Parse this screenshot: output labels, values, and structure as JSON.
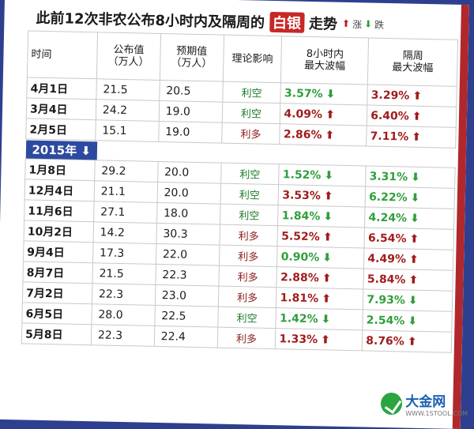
{
  "title": {
    "prefix": "此前12次非农公布8小时内及隔周的",
    "highlight": "白银",
    "suffix": "走势",
    "legend_up": "涨",
    "legend_down": "跌"
  },
  "headers": {
    "date": "时间",
    "actual_l1": "公布值",
    "actual_l2": "（万人）",
    "expected_l1": "预期值",
    "expected_l2": "（万人）",
    "impact": "理论影响",
    "h8_l1": "8小时内",
    "h8_l2": "最大波幅",
    "week_l1": "隔周",
    "week_l2": "最大波幅"
  },
  "year_label": "2015年",
  "rows_2015": [
    {
      "date": "4月1日",
      "actual": "21.5",
      "expected": "20.5",
      "impact": "利空",
      "h8": "3.57%",
      "h8_dir": "down",
      "week": "3.29%",
      "week_dir": "up"
    },
    {
      "date": "3月4日",
      "actual": "24.2",
      "expected": "19.0",
      "impact": "利空",
      "h8": "4.09%",
      "h8_dir": "up",
      "week": "6.40%",
      "week_dir": "up"
    },
    {
      "date": "2月5日",
      "actual": "15.1",
      "expected": "19.0",
      "impact": "利多",
      "h8": "2.86%",
      "h8_dir": "up",
      "week": "7.11%",
      "week_dir": "up"
    }
  ],
  "rows_2014": [
    {
      "date": "1月8日",
      "actual": "29.2",
      "expected": "20.0",
      "impact": "利空",
      "h8": "1.52%",
      "h8_dir": "down",
      "week": "3.31%",
      "week_dir": "down"
    },
    {
      "date": "12月4日",
      "actual": "21.1",
      "expected": "20.0",
      "impact": "利空",
      "h8": "3.53%",
      "h8_dir": "up",
      "week": "6.22%",
      "week_dir": "down"
    },
    {
      "date": "11月6日",
      "actual": "27.1",
      "expected": "18.0",
      "impact": "利空",
      "h8": "1.84%",
      "h8_dir": "down",
      "week": "4.24%",
      "week_dir": "down"
    },
    {
      "date": "10月2日",
      "actual": "14.2",
      "expected": "30.3",
      "impact": "利多",
      "h8": "5.52%",
      "h8_dir": "up",
      "week": "6.54%",
      "week_dir": "up"
    },
    {
      "date": "9月4日",
      "actual": "17.3",
      "expected": "22.0",
      "impact": "利多",
      "h8": "0.90%",
      "h8_dir": "down",
      "week": "4.49%",
      "week_dir": "up"
    },
    {
      "date": "8月7日",
      "actual": "21.5",
      "expected": "22.3",
      "impact": "利多",
      "h8": "2.88%",
      "h8_dir": "up",
      "week": "5.84%",
      "week_dir": "up"
    },
    {
      "date": "7月2日",
      "actual": "22.3",
      "expected": "23.0",
      "impact": "利多",
      "h8": "1.81%",
      "h8_dir": "up",
      "week": "7.93%",
      "week_dir": "down"
    },
    {
      "date": "6月5日",
      "actual": "28.0",
      "expected": "22.5",
      "impact": "利空",
      "h8": "1.42%",
      "h8_dir": "down",
      "week": "2.54%",
      "week_dir": "down"
    },
    {
      "date": "5月8日",
      "actual": "22.3",
      "expected": "22.4",
      "impact": "利多",
      "h8": "1.33%",
      "h8_dir": "up",
      "week": "8.76%",
      "week_dir": "up"
    }
  ],
  "colors": {
    "up": "#a11b1b",
    "down": "#2e9e3a",
    "year_badge": "#2c4aa0",
    "highlight": "#c62828"
  },
  "logo": {
    "name": "大金网",
    "url": "WWW.1STOOL.COM"
  }
}
